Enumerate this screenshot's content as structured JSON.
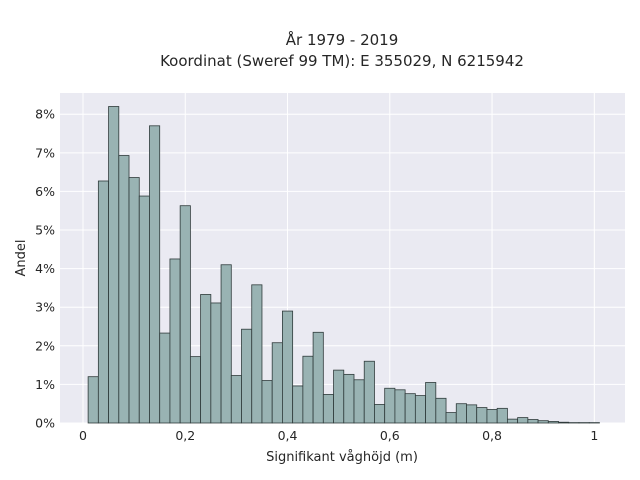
{
  "chart_data": {
    "type": "bar",
    "title_lines": [
      "År 1979 - 2019",
      "Koordinat (Sweref 99 TM): E 355029, N 6215942"
    ],
    "xlabel": "Signifikant våghöjd (m)",
    "ylabel": "Andel",
    "xlim": [
      -0.045,
      1.06
    ],
    "ylim": [
      0,
      8.55
    ],
    "x_ticks": [
      0,
      0.2,
      0.4,
      0.6,
      0.8,
      1
    ],
    "x_tick_labels": [
      "0",
      "0,2",
      "0,4",
      "0,6",
      "0,8",
      "1"
    ],
    "y_ticks": [
      0,
      1,
      2,
      3,
      4,
      5,
      6,
      7,
      8
    ],
    "y_tick_labels": [
      "0%",
      "1%",
      "2%",
      "3%",
      "4%",
      "5%",
      "6%",
      "7%",
      "8%"
    ],
    "bin_start": 0.01,
    "bin_width": 0.02,
    "values": [
      1.2,
      6.27,
      8.2,
      6.93,
      6.36,
      5.88,
      7.7,
      2.33,
      4.25,
      5.63,
      1.72,
      3.33,
      3.11,
      4.1,
      1.23,
      2.43,
      3.58,
      1.1,
      2.08,
      2.9,
      0.96,
      1.73,
      2.35,
      0.74,
      1.37,
      1.26,
      1.12,
      1.6,
      0.48,
      0.9,
      0.86,
      0.76,
      0.71,
      1.05,
      0.64,
      0.27,
      0.5,
      0.47,
      0.4,
      0.35,
      0.38,
      0.1,
      0.14,
      0.09,
      0.06,
      0.04,
      0.02,
      0.01,
      0.01,
      0.01
    ],
    "grid": true,
    "bar_color": "#99b3b3",
    "edge_color": "#2f3b3b",
    "background_color": "#eaeaf2"
  }
}
